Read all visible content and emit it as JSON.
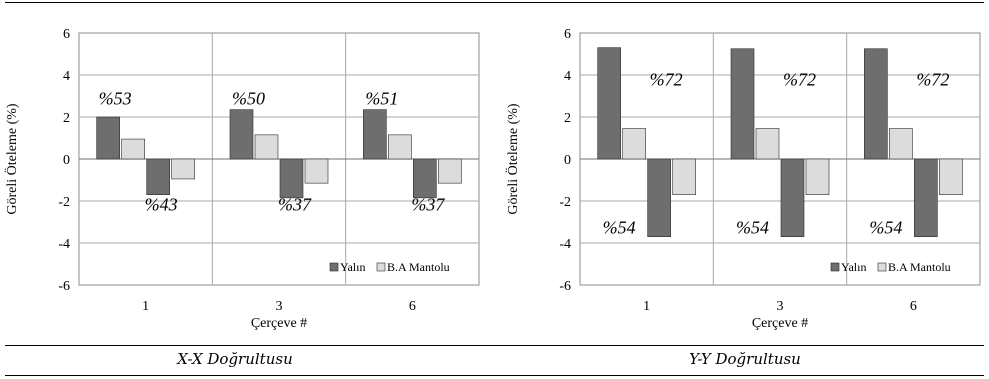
{
  "captions": [
    "X-X Doğrultusu",
    "Y-Y Doğrultusu"
  ],
  "chart_data": [
    {
      "type": "bar",
      "title": "",
      "xlabel": "Çerçeve #",
      "ylabel": "Göreli Öteleme (%)",
      "ylim": [
        -6,
        6
      ],
      "yticks": [
        "6",
        "4",
        "2",
        "0",
        "-2",
        "-4",
        "-6"
      ],
      "categories": [
        "1",
        "3",
        "6"
      ],
      "grid": true,
      "legend_position": "bottom-right",
      "series": [
        {
          "name": "Yalın",
          "color": "#6e6e6e",
          "values": [
            [
              2.0,
              -1.7
            ],
            [
              2.35,
              -1.85
            ],
            [
              2.35,
              -1.85
            ]
          ]
        },
        {
          "name": "B.A Mantolu",
          "color": "#dcdcdc",
          "values": [
            [
              0.95,
              -0.95
            ],
            [
              1.15,
              -1.15
            ],
            [
              1.15,
              -1.15
            ]
          ]
        }
      ],
      "annotations": {
        "positive": [
          "%53",
          "%50",
          "%51"
        ],
        "negative": [
          "%43",
          "%37",
          "%37"
        ]
      }
    },
    {
      "type": "bar",
      "title": "",
      "xlabel": "Çerçeve #",
      "ylabel": "Göreli Öteleme (%)",
      "ylim": [
        -6,
        6
      ],
      "yticks": [
        "6",
        "4",
        "2",
        "0",
        "-2",
        "-4",
        "-6"
      ],
      "categories": [
        "1",
        "3",
        "6"
      ],
      "grid": true,
      "legend_position": "bottom-right",
      "series": [
        {
          "name": "Yalın",
          "color": "#6e6e6e",
          "values": [
            [
              5.3,
              -3.7
            ],
            [
              5.25,
              -3.7
            ],
            [
              5.25,
              -3.7
            ]
          ]
        },
        {
          "name": "B.A Mantolu",
          "color": "#dcdcdc",
          "values": [
            [
              1.45,
              -1.7
            ],
            [
              1.45,
              -1.7
            ],
            [
              1.45,
              -1.7
            ]
          ]
        }
      ],
      "annotations": {
        "positive": [
          "%72",
          "%72",
          "%72"
        ],
        "negative": [
          "%54",
          "%54",
          "%54"
        ]
      }
    }
  ]
}
